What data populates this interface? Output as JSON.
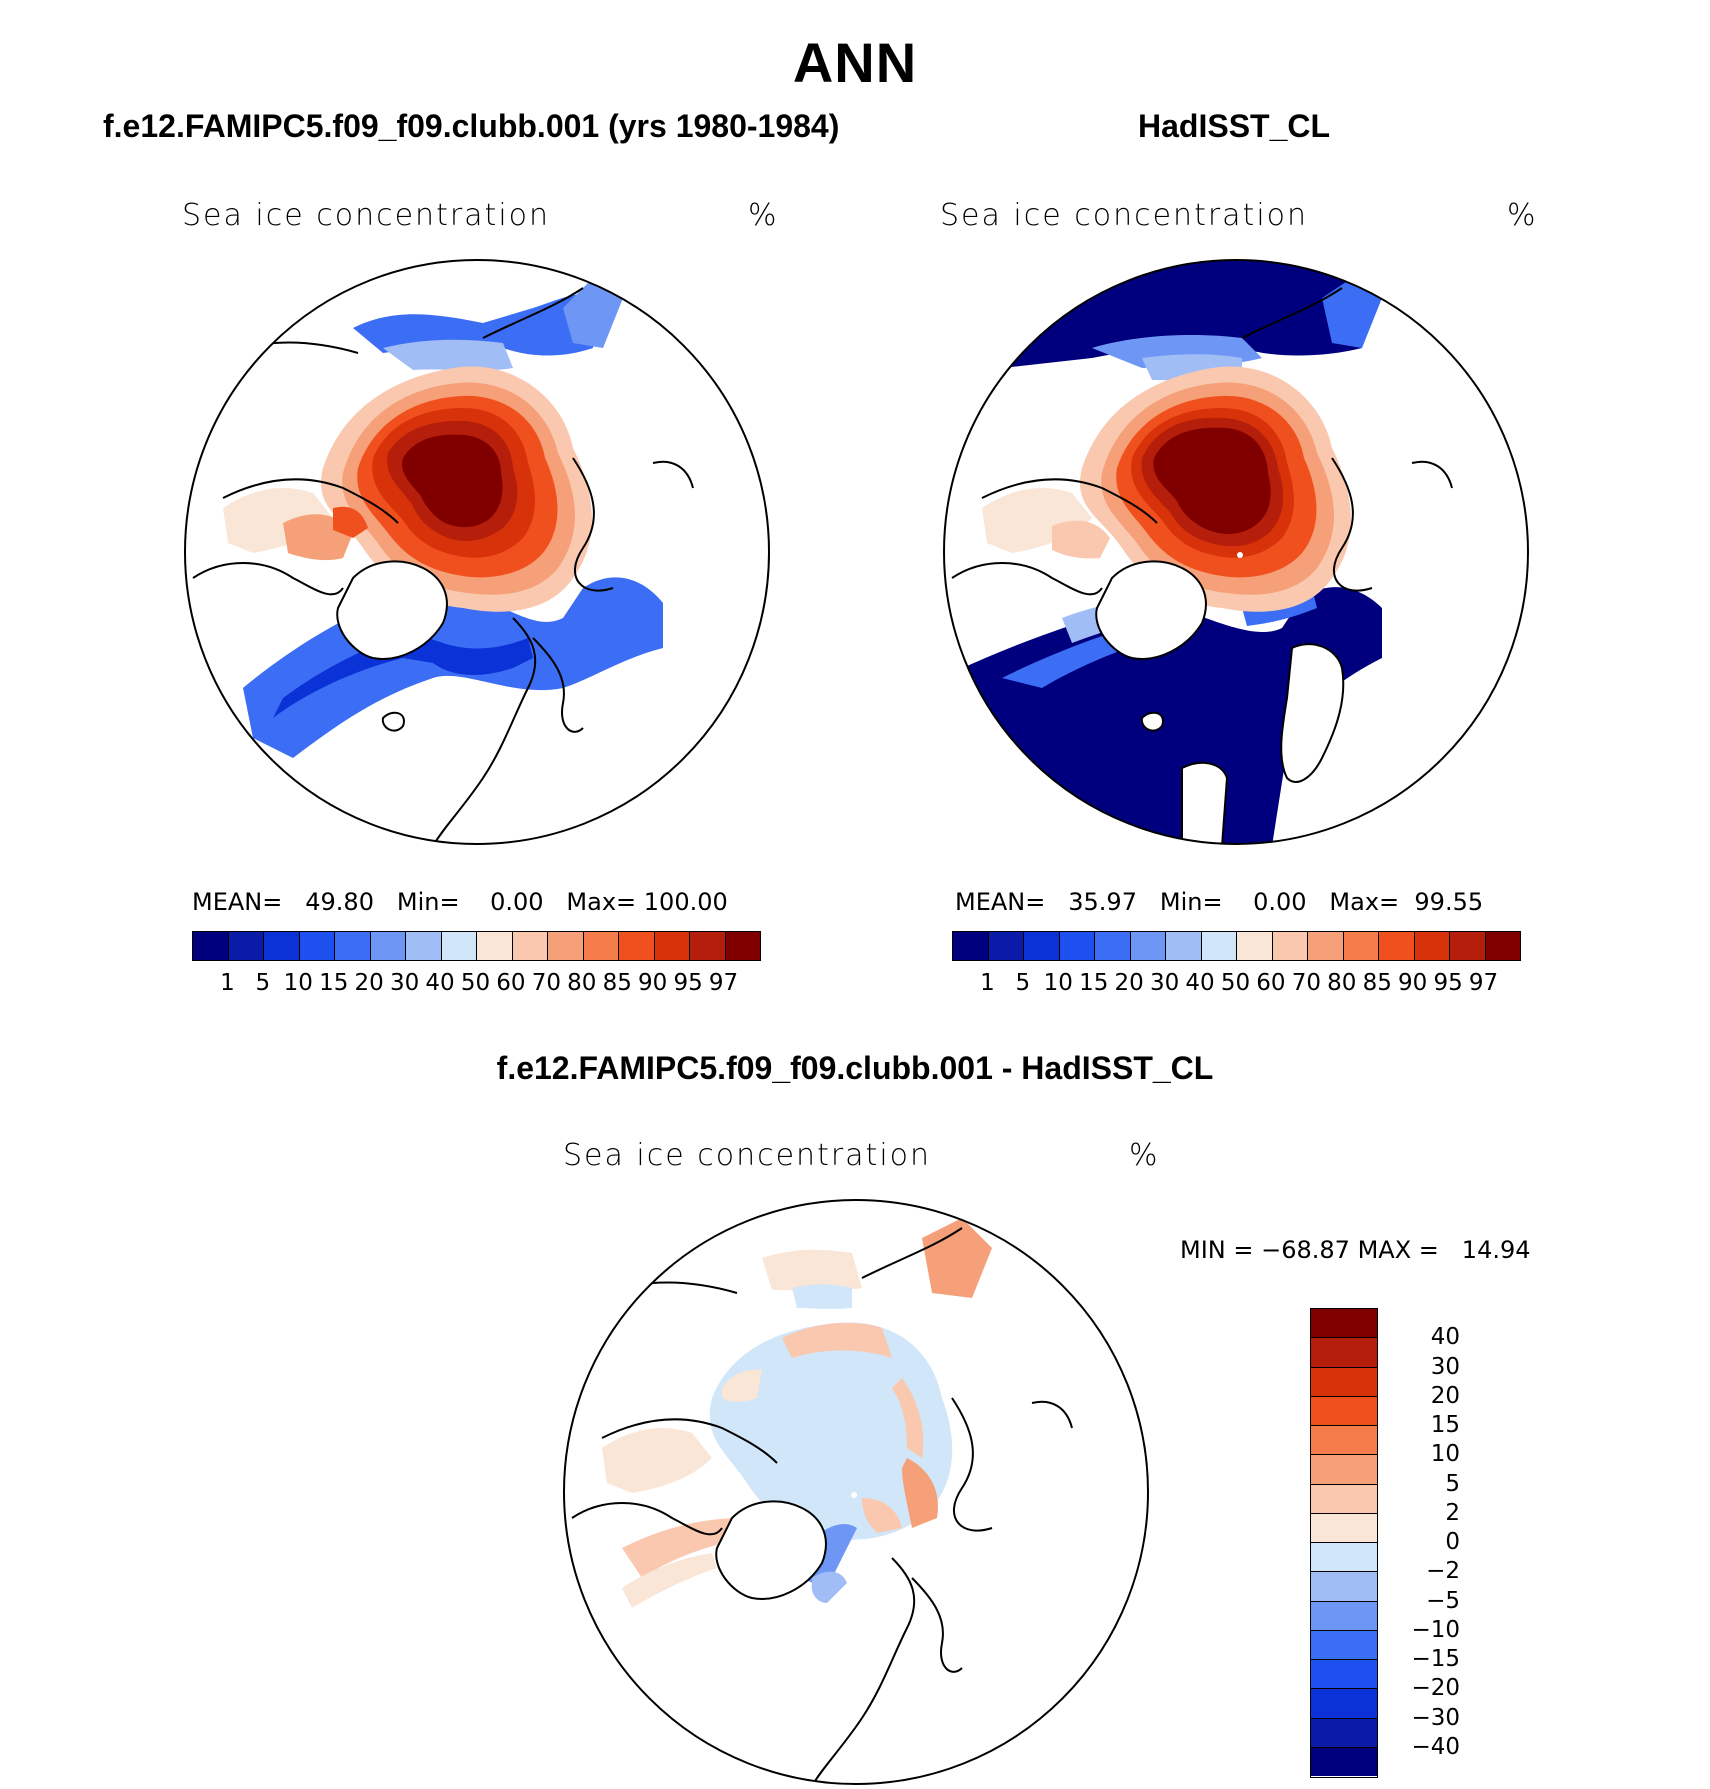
{
  "main_title": "ANN",
  "panels": [
    {
      "title": "f.e12.FAMIPC5.f09_f09.clubb.001 (yrs 1980-1984)",
      "variable": "Sea ice concentration",
      "units": "%",
      "stats": {
        "mean_label": "MEAN=",
        "mean": "49.80",
        "min_label": "Min=",
        "min": "0.00",
        "max_label": "Max=",
        "max": "100.00"
      }
    },
    {
      "title": "HadISST_CL",
      "variable": "Sea ice concentration",
      "units": "%",
      "stats": {
        "mean_label": "MEAN=",
        "mean": "35.97",
        "min_label": "Min=",
        "min": "0.00",
        "max_label": "Max=",
        "max": "99.55"
      }
    },
    {
      "title": "f.e12.FAMIPC5.f09_f09.clubb.001 - HadISST_CL",
      "variable": "Sea ice concentration",
      "units": "%",
      "stats": {
        "min_label": "MIN =",
        "min": "−68.87",
        "max_label": "MAX =",
        "max": "14.94"
      }
    }
  ],
  "abs_colorbar": {
    "levels": [
      "1",
      "5",
      "10",
      "15",
      "20",
      "30",
      "40",
      "50",
      "60",
      "70",
      "80",
      "85",
      "90",
      "95",
      "97"
    ],
    "colors": [
      "#00007f",
      "#0a1ba8",
      "#0a32d7",
      "#1e50f0",
      "#3c6ef5",
      "#6e96f5",
      "#a0bef5",
      "#d2e6fa",
      "#fae6d7",
      "#fac8af",
      "#f5a078",
      "#f57d4b",
      "#f0501e",
      "#d7320a",
      "#b41e0a",
      "#800000"
    ]
  },
  "diff_colorbar": {
    "levels": [
      "40",
      "30",
      "20",
      "15",
      "10",
      "5",
      "2",
      "0",
      "−2",
      "−5",
      "−10",
      "−15",
      "−20",
      "−30",
      "−40"
    ],
    "colors": [
      "#800000",
      "#b41e0a",
      "#d7320a",
      "#f0501e",
      "#f57d4b",
      "#f5a078",
      "#fac8af",
      "#fae6d7",
      "#d2e6fa",
      "#a0bef5",
      "#6e96f5",
      "#3c6ef5",
      "#1e50f0",
      "#0a32d7",
      "#0a1ba8",
      "#00007f"
    ]
  }
}
